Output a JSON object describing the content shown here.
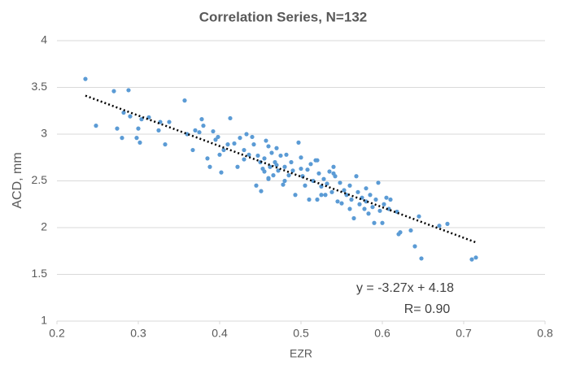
{
  "chart_data": {
    "type": "scatter",
    "title": "Correlation Series, N=132",
    "x_label": "EZR",
    "y_label": "ACD, mm",
    "series": [
      {
        "color": "#5b9bd5",
        "x": [
          0.235,
          0.248,
          0.27,
          0.288,
          0.274,
          0.28,
          0.282,
          0.29,
          0.298,
          0.3,
          0.304,
          0.302,
          0.313,
          0.325,
          0.327,
          0.333,
          0.338,
          0.357,
          0.36,
          0.367,
          0.37,
          0.375,
          0.378,
          0.38,
          0.385,
          0.388,
          0.392,
          0.395,
          0.398,
          0.402,
          0.4,
          0.405,
          0.41,
          0.413,
          0.418,
          0.422,
          0.425,
          0.43,
          0.433,
          0.436,
          0.44,
          0.442,
          0.445,
          0.447,
          0.45,
          0.451,
          0.453,
          0.455,
          0.457,
          0.46,
          0.46,
          0.462,
          0.464,
          0.466,
          0.468,
          0.47,
          0.472,
          0.475,
          0.478,
          0.48,
          0.482,
          0.485,
          0.488,
          0.49,
          0.493,
          0.497,
          0.5,
          0.502,
          0.505,
          0.508,
          0.51,
          0.512,
          0.515,
          0.518,
          0.52,
          0.522,
          0.525,
          0.528,
          0.53,
          0.532,
          0.535,
          0.538,
          0.54,
          0.542,
          0.545,
          0.548,
          0.55,
          0.553,
          0.556,
          0.56,
          0.562,
          0.565,
          0.568,
          0.57,
          0.572,
          0.575,
          0.578,
          0.58,
          0.583,
          0.585,
          0.588,
          0.59,
          0.592,
          0.595,
          0.597,
          0.6,
          0.602,
          0.605,
          0.608,
          0.61,
          0.618,
          0.62,
          0.622,
          0.635,
          0.64,
          0.645,
          0.648,
          0.67,
          0.68,
          0.71,
          0.715,
          0.46,
          0.47,
          0.5,
          0.52,
          0.54,
          0.48,
          0.455,
          0.525,
          0.56,
          0.43,
          0.58
        ],
        "values": [
          3.59,
          3.09,
          3.46,
          3.47,
          3.06,
          2.96,
          3.23,
          3.19,
          2.96,
          3.06,
          3.16,
          2.91,
          3.18,
          3.04,
          3.13,
          2.89,
          3.13,
          3.36,
          3.0,
          2.83,
          3.04,
          3.02,
          3.16,
          3.09,
          2.74,
          2.65,
          3.03,
          2.94,
          2.97,
          2.59,
          2.78,
          2.83,
          2.89,
          3.17,
          2.9,
          2.65,
          2.96,
          2.83,
          3.0,
          2.78,
          2.97,
          2.89,
          2.45,
          2.77,
          2.7,
          2.39,
          2.63,
          2.74,
          2.93,
          2.87,
          2.52,
          2.65,
          2.8,
          2.56,
          2.7,
          2.85,
          2.61,
          2.77,
          2.46,
          2.65,
          2.78,
          2.56,
          2.7,
          2.61,
          2.35,
          2.91,
          2.75,
          2.55,
          2.45,
          2.62,
          2.3,
          2.68,
          2.5,
          2.72,
          2.3,
          2.58,
          2.44,
          2.52,
          2.35,
          2.47,
          2.6,
          2.38,
          2.65,
          2.55,
          2.28,
          2.48,
          2.26,
          2.4,
          2.35,
          2.45,
          2.3,
          2.1,
          2.55,
          2.38,
          2.25,
          2.32,
          2.2,
          2.28,
          2.15,
          2.35,
          2.22,
          2.05,
          2.3,
          2.48,
          2.18,
          2.05,
          2.25,
          2.32,
          2.2,
          2.3,
          2.17,
          1.93,
          1.95,
          1.97,
          1.8,
          2.12,
          1.67,
          2.02,
          2.04,
          1.66,
          1.68,
          2.53,
          2.67,
          2.63,
          2.72,
          2.58,
          2.5,
          2.6,
          2.35,
          2.2,
          2.73,
          2.42
        ]
      }
    ],
    "trendline": {
      "slope": -3.27,
      "intercept": 4.18,
      "x_range": [
        0.235,
        0.715
      ]
    },
    "annotations": [
      "y = -3.27x + 4.18",
      "R= 0.90"
    ],
    "xlim": [
      0.2,
      0.8
    ],
    "xticks": [
      0.2,
      0.3,
      0.4,
      0.5,
      0.6,
      0.7,
      0.8
    ],
    "ylim": [
      1,
      4
    ],
    "yticks": [
      1,
      1.5,
      2,
      2.5,
      3,
      3.5,
      4
    ],
    "grid": true
  }
}
